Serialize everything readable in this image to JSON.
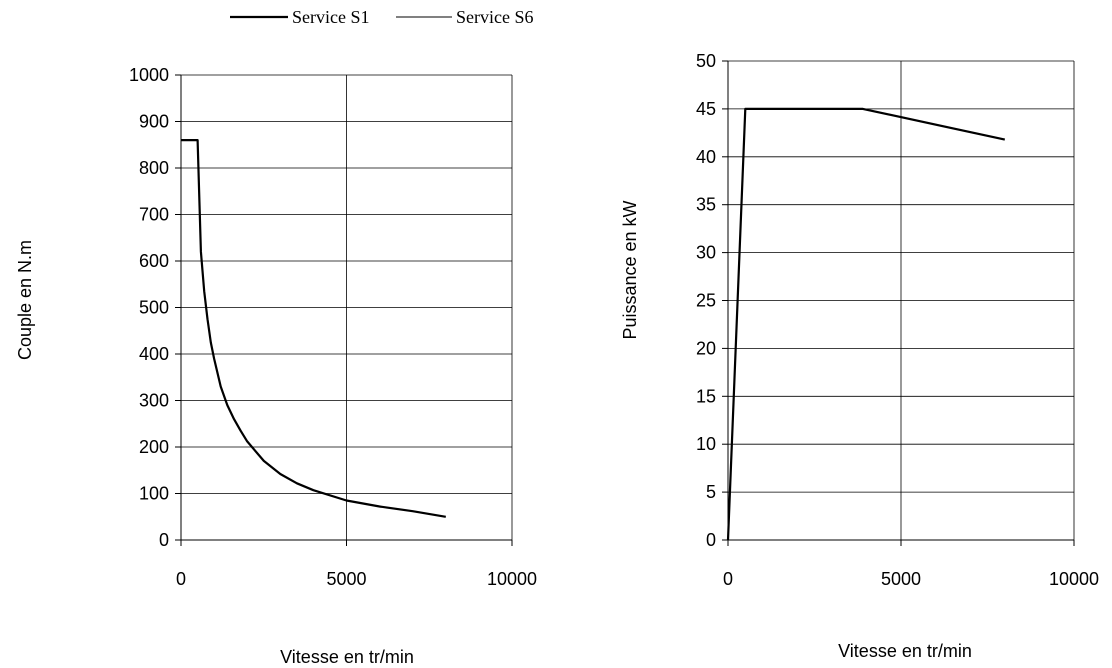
{
  "legend": {
    "items": [
      {
        "label": "Service S1",
        "color": "#000000",
        "weight": "bold"
      },
      {
        "label": "Service S6",
        "color": "#000000",
        "weight": "thin"
      }
    ]
  },
  "chart_data": [
    {
      "type": "line",
      "xlabel": "Vitesse en tr/min",
      "ylabel": "Couple en N.m",
      "xlim": [
        0,
        10000
      ],
      "ylim": [
        0,
        1000
      ],
      "xticks": [
        "0",
        "5000",
        "10000"
      ],
      "yticks": [
        "0",
        "100",
        "200",
        "300",
        "400",
        "500",
        "600",
        "700",
        "800",
        "900",
        "1000"
      ],
      "grid": true,
      "series": [
        {
          "name": "Service S1",
          "x": [
            0,
            500,
            600,
            700,
            800,
            900,
            1000,
            1200,
            1400,
            1600,
            1800,
            2000,
            2500,
            3000,
            3500,
            4000,
            5000,
            6000,
            7000,
            8000
          ],
          "y": [
            860,
            860,
            620,
            535,
            475,
            425,
            390,
            330,
            290,
            260,
            235,
            212,
            170,
            142,
            122,
            107,
            85,
            72,
            62,
            50
          ]
        }
      ]
    },
    {
      "type": "line",
      "xlabel": "Vitesse en tr/min",
      "ylabel": "Puissance en kW",
      "xlim": [
        0,
        10000
      ],
      "ylim": [
        0,
        50
      ],
      "xticks": [
        "0",
        "5000",
        "10000"
      ],
      "yticks": [
        "0",
        "5",
        "10",
        "15",
        "20",
        "25",
        "30",
        "35",
        "40",
        "45",
        "50"
      ],
      "grid": true,
      "series": [
        {
          "name": "Service S1",
          "x": [
            0,
            500,
            3900,
            8000
          ],
          "y": [
            0,
            45,
            45,
            41.8
          ]
        }
      ]
    }
  ]
}
